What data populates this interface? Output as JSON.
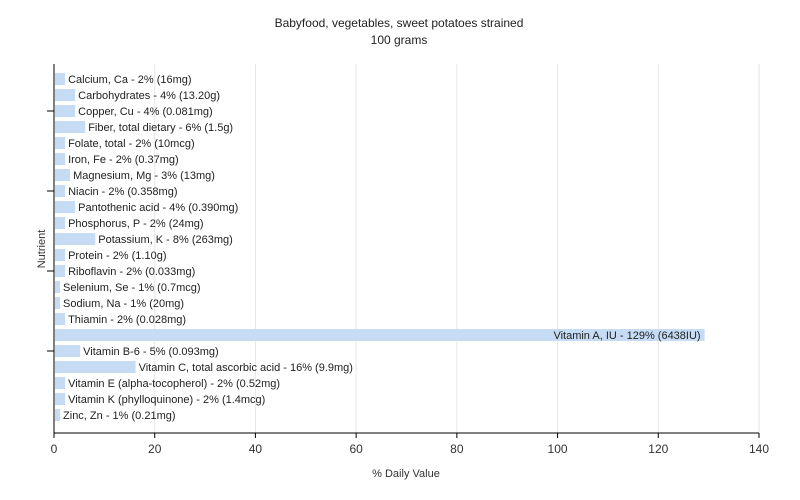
{
  "chart_data": {
    "type": "bar",
    "orientation": "horizontal",
    "title": "Babyfood, vegetables, sweet potatoes strained",
    "subtitle": "100 grams",
    "xlabel": "% Daily Value",
    "ylabel": "Nutrient",
    "xlim": [
      0,
      140
    ],
    "xticks": [
      0,
      20,
      40,
      60,
      80,
      100,
      120,
      140
    ],
    "grid": true,
    "bar_color": "#c6dcf5",
    "categories": [
      "Calcium, Ca",
      "Carbohydrates",
      "Copper, Cu",
      "Fiber, total dietary",
      "Folate, total",
      "Iron, Fe",
      "Magnesium, Mg",
      "Niacin",
      "Pantothenic acid",
      "Phosphorus, P",
      "Potassium, K",
      "Protein",
      "Riboflavin",
      "Selenium, Se",
      "Sodium, Na",
      "Thiamin",
      "Vitamin A, IU",
      "Vitamin B-6",
      "Vitamin C, total ascorbic acid",
      "Vitamin E (alpha-tocopherol)",
      "Vitamin K (phylloquinone)",
      "Zinc, Zn"
    ],
    "values": [
      2,
      4,
      4,
      6,
      2,
      2,
      3,
      2,
      4,
      2,
      8,
      2,
      2,
      1,
      1,
      2,
      129,
      5,
      16,
      2,
      2,
      1
    ],
    "labels": [
      "Calcium, Ca - 2% (16mg)",
      "Carbohydrates - 4% (13.20g)",
      "Copper, Cu - 4% (0.081mg)",
      "Fiber, total dietary - 6% (1.5g)",
      "Folate, total - 2% (10mcg)",
      "Iron, Fe - 2% (0.37mg)",
      "Magnesium, Mg - 3% (13mg)",
      "Niacin - 2% (0.358mg)",
      "Pantothenic acid - 4% (0.390mg)",
      "Phosphorus, P - 2% (24mg)",
      "Potassium, K - 8% (263mg)",
      "Protein - 2% (1.10g)",
      "Riboflavin - 2% (0.033mg)",
      "Selenium, Se - 1% (0.7mcg)",
      "Sodium, Na - 1% (20mg)",
      "Thiamin - 2% (0.028mg)",
      "Vitamin A, IU - 129% (6438IU)",
      "Vitamin B-6 - 5% (0.093mg)",
      "Vitamin C, total ascorbic acid - 16% (9.9mg)",
      "Vitamin E (alpha-tocopherol) - 2% (0.52mg)",
      "Vitamin K (phylloquinone) - 2% (1.4mcg)",
      "Zinc, Zn - 1% (0.21mg)"
    ]
  }
}
